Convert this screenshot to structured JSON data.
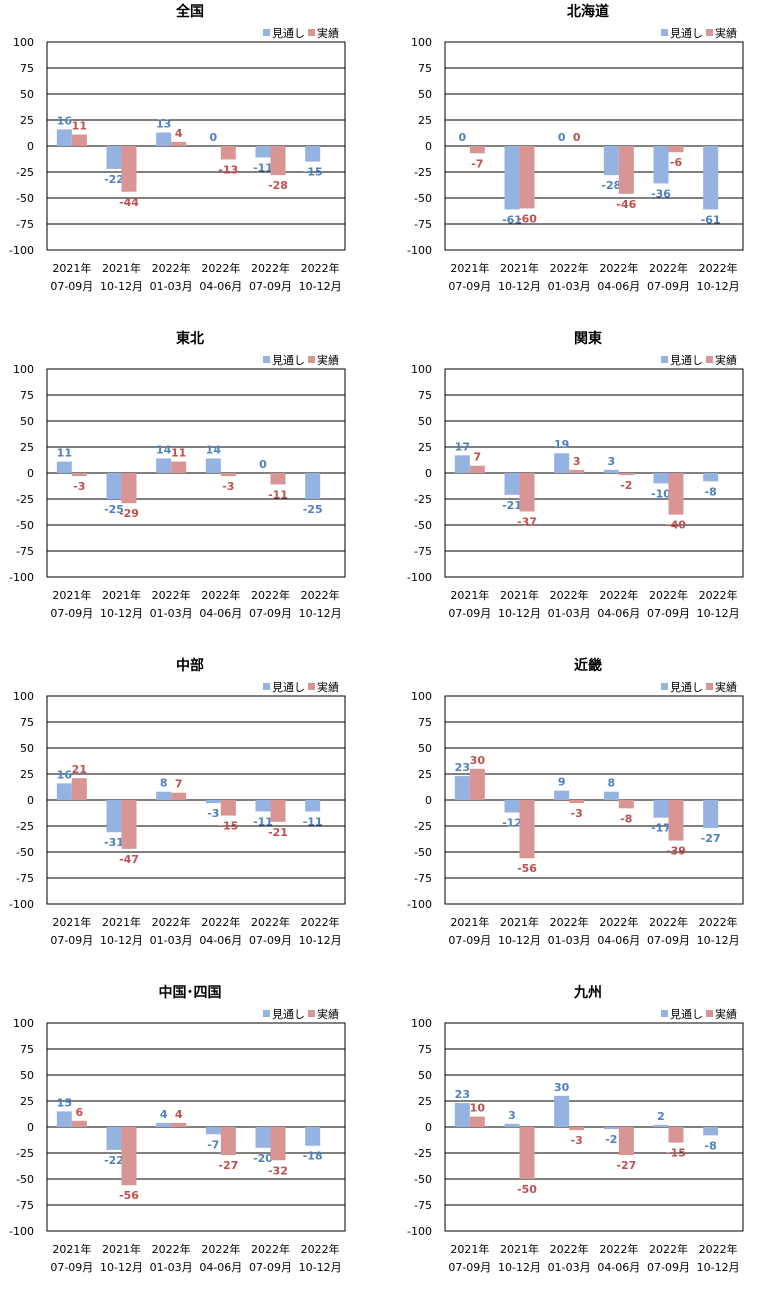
{
  "legend": {
    "forecast": "見通し",
    "actual": "実績"
  },
  "colors": {
    "forecast_bar": "#95b3e0",
    "actual_bar": "#d99594",
    "forecast_label": "#4f81bd",
    "actual_label": "#c0504d"
  },
  "chart_data": [
    {
      "type": "bar",
      "title": "全国",
      "categories": [
        [
          "2021年",
          "07-09月"
        ],
        [
          "2021年",
          "10-12月"
        ],
        [
          "2022年",
          "01-03月"
        ],
        [
          "2022年",
          "04-06月"
        ],
        [
          "2022年",
          "07-09月"
        ],
        [
          "2022年",
          "10-12月"
        ]
      ],
      "ylim": [
        -100,
        100
      ],
      "yticks": [
        100,
        75,
        50,
        25,
        0,
        -25,
        -50,
        -75,
        -100
      ],
      "grid": true,
      "legend_position": "top-right",
      "series": [
        {
          "name": "見通し",
          "values": [
            16,
            -22,
            13,
            0,
            -11,
            -15
          ]
        },
        {
          "name": "実績",
          "values": [
            11,
            -44,
            4,
            -13,
            -28,
            null
          ]
        }
      ]
    },
    {
      "type": "bar",
      "title": "北海道",
      "categories": [
        [
          "2021年",
          "07-09月"
        ],
        [
          "2021年",
          "10-12月"
        ],
        [
          "2022年",
          "01-03月"
        ],
        [
          "2022年",
          "04-06月"
        ],
        [
          "2022年",
          "07-09月"
        ],
        [
          "2022年",
          "10-12月"
        ]
      ],
      "ylim": [
        -100,
        100
      ],
      "yticks": [
        100,
        75,
        50,
        25,
        0,
        -25,
        -50,
        -75,
        -100
      ],
      "grid": true,
      "legend_position": "top-right",
      "series": [
        {
          "name": "見通し",
          "values": [
            0,
            -61,
            0,
            -28,
            -36,
            -61
          ]
        },
        {
          "name": "実績",
          "values": [
            -7,
            -60,
            0,
            -46,
            -6,
            null
          ]
        }
      ]
    },
    {
      "type": "bar",
      "title": "東北",
      "categories": [
        [
          "2021年",
          "07-09月"
        ],
        [
          "2021年",
          "10-12月"
        ],
        [
          "2022年",
          "01-03月"
        ],
        [
          "2022年",
          "04-06月"
        ],
        [
          "2022年",
          "07-09月"
        ],
        [
          "2022年",
          "10-12月"
        ]
      ],
      "ylim": [
        -100,
        100
      ],
      "yticks": [
        100,
        75,
        50,
        25,
        0,
        -25,
        -50,
        -75,
        -100
      ],
      "grid": true,
      "legend_position": "top-right",
      "series": [
        {
          "name": "見通し",
          "values": [
            11,
            -25,
            14,
            14,
            0,
            -25
          ]
        },
        {
          "name": "実績",
          "values": [
            -3,
            -29,
            11,
            -3,
            -11,
            null
          ]
        }
      ]
    },
    {
      "type": "bar",
      "title": "関東",
      "categories": [
        [
          "2021年",
          "07-09月"
        ],
        [
          "2021年",
          "10-12月"
        ],
        [
          "2022年",
          "01-03月"
        ],
        [
          "2022年",
          "04-06月"
        ],
        [
          "2022年",
          "07-09月"
        ],
        [
          "2022年",
          "10-12月"
        ]
      ],
      "ylim": [
        -100,
        100
      ],
      "yticks": [
        100,
        75,
        50,
        25,
        0,
        -25,
        -50,
        -75,
        -100
      ],
      "grid": true,
      "legend_position": "top-right",
      "series": [
        {
          "name": "見通し",
          "values": [
            17,
            -21,
            19,
            3,
            -10,
            -8
          ]
        },
        {
          "name": "実績",
          "values": [
            7,
            -37,
            3,
            -2,
            -40,
            null
          ]
        }
      ]
    },
    {
      "type": "bar",
      "title": "中部",
      "categories": [
        [
          "2021年",
          "07-09月"
        ],
        [
          "2021年",
          "10-12月"
        ],
        [
          "2022年",
          "01-03月"
        ],
        [
          "2022年",
          "04-06月"
        ],
        [
          "2022年",
          "07-09月"
        ],
        [
          "2022年",
          "10-12月"
        ]
      ],
      "ylim": [
        -100,
        100
      ],
      "yticks": [
        100,
        75,
        50,
        25,
        0,
        -25,
        -50,
        -75,
        -100
      ],
      "grid": true,
      "legend_position": "top-right",
      "series": [
        {
          "name": "見通し",
          "values": [
            16,
            -31,
            8,
            -3,
            -11,
            -11
          ]
        },
        {
          "name": "実績",
          "values": [
            21,
            -47,
            7,
            -15,
            -21,
            null
          ]
        }
      ]
    },
    {
      "type": "bar",
      "title": "近畿",
      "categories": [
        [
          "2021年",
          "07-09月"
        ],
        [
          "2021年",
          "10-12月"
        ],
        [
          "2022年",
          "01-03月"
        ],
        [
          "2022年",
          "04-06月"
        ],
        [
          "2022年",
          "07-09月"
        ],
        [
          "2022年",
          "10-12月"
        ]
      ],
      "ylim": [
        -100,
        100
      ],
      "yticks": [
        100,
        75,
        50,
        25,
        0,
        -25,
        -50,
        -75,
        -100
      ],
      "grid": true,
      "legend_position": "top-right",
      "series": [
        {
          "name": "見通し",
          "values": [
            23,
            -12,
            9,
            8,
            -17,
            -27
          ]
        },
        {
          "name": "実績",
          "values": [
            30,
            -56,
            -3,
            -8,
            -39,
            null
          ]
        }
      ]
    },
    {
      "type": "bar",
      "title": "中国･四国",
      "categories": [
        [
          "2021年",
          "07-09月"
        ],
        [
          "2021年",
          "10-12月"
        ],
        [
          "2022年",
          "01-03月"
        ],
        [
          "2022年",
          "04-06月"
        ],
        [
          "2022年",
          "07-09月"
        ],
        [
          "2022年",
          "10-12月"
        ]
      ],
      "ylim": [
        -100,
        100
      ],
      "yticks": [
        100,
        75,
        50,
        25,
        0,
        -25,
        -50,
        -75,
        -100
      ],
      "grid": true,
      "legend_position": "top-right",
      "series": [
        {
          "name": "見通し",
          "values": [
            15,
            -22,
            4,
            -7,
            -20,
            -18
          ]
        },
        {
          "name": "実績",
          "values": [
            6,
            -56,
            4,
            -27,
            -32,
            null
          ]
        }
      ]
    },
    {
      "type": "bar",
      "title": "九州",
      "categories": [
        [
          "2021年",
          "07-09月"
        ],
        [
          "2021年",
          "10-12月"
        ],
        [
          "2022年",
          "01-03月"
        ],
        [
          "2022年",
          "04-06月"
        ],
        [
          "2022年",
          "07-09月"
        ],
        [
          "2022年",
          "10-12月"
        ]
      ],
      "ylim": [
        -100,
        100
      ],
      "yticks": [
        100,
        75,
        50,
        25,
        0,
        -25,
        -50,
        -75,
        -100
      ],
      "grid": true,
      "legend_position": "top-right",
      "series": [
        {
          "name": "見通し",
          "values": [
            23,
            3,
            30,
            -2,
            2,
            -8
          ]
        },
        {
          "name": "実績",
          "values": [
            10,
            -50,
            -3,
            -27,
            -15,
            null
          ]
        }
      ]
    }
  ]
}
